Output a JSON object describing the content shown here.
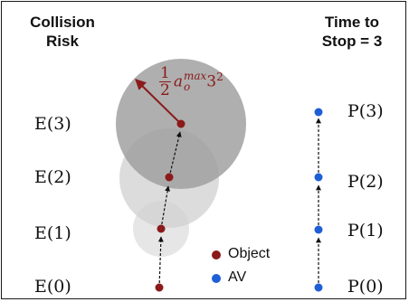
{
  "headers": {
    "left_line1": "Collision",
    "left_line2": "Risk",
    "right_line1": "Time to",
    "right_line2": "Stop = 3"
  },
  "object_labels": [
    "E(0)",
    "E(1)",
    "E(2)",
    "E(3)"
  ],
  "av_labels": [
    "P(0)",
    "P(1)",
    "P(2)",
    "P(3)"
  ],
  "radius_formula": {
    "numerator": "1",
    "denominator": "2",
    "base": "a",
    "subscript": "o",
    "superscript": "max",
    "tail": "3",
    "tail_exp": "2"
  },
  "legend": {
    "object_label": "Object",
    "av_label": "AV"
  },
  "colors": {
    "object": "#8b1a1a",
    "av": "#1f5fd6",
    "formula": "#8b1a1a",
    "circle_small": "#e3e3e3",
    "circle_mid": "#d0d0d0",
    "circle_large": "#a9a9a9"
  }
}
